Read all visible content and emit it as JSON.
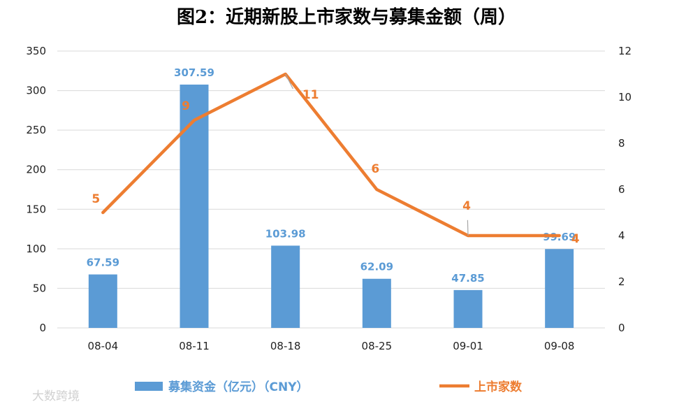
{
  "title": "图2：近期新股上市家数与募集金额（周）",
  "colors": {
    "bar": "#5b9bd5",
    "line": "#ed7d31",
    "grid": "#d9d9d9"
  },
  "watermark": "大数跨境",
  "chart_data": {
    "type": "bar+line",
    "title": "图2：近期新股上市家数与募集金额（周）",
    "categories": [
      "08-04",
      "08-11",
      "08-18",
      "08-25",
      "09-01",
      "09-08"
    ],
    "series": [
      {
        "name": "募集资金（亿元）（CNY）",
        "type": "bar",
        "axis": "left",
        "values": [
          67.59,
          307.59,
          103.98,
          62.09,
          47.85,
          99.69
        ],
        "labels": [
          "67.59",
          "307.59",
          "103.98",
          "62.09",
          "47.85",
          "99.69"
        ]
      },
      {
        "name": "上市家数",
        "type": "line",
        "axis": "right",
        "values": [
          5,
          9,
          11,
          6,
          4,
          4
        ],
        "labels": [
          "5",
          "9",
          "11",
          "6",
          "4",
          "4"
        ]
      }
    ],
    "y_left": {
      "min": 0,
      "max": 350,
      "ticks": [
        "0",
        "50",
        "100",
        "150",
        "200",
        "250",
        "300",
        "350"
      ]
    },
    "y_right": {
      "min": 0,
      "max": 12,
      "ticks": [
        "0",
        "2",
        "4",
        "6",
        "8",
        "10",
        "12"
      ]
    },
    "grid": true,
    "legend": "bottom"
  }
}
